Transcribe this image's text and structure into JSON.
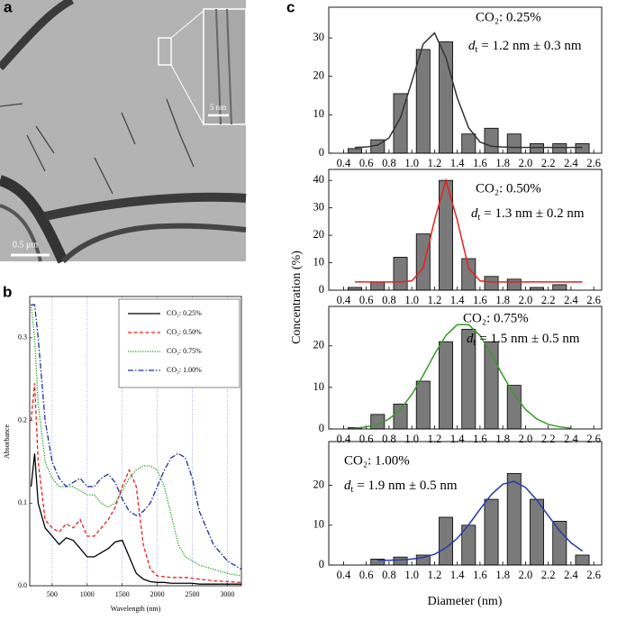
{
  "panel_labels": [
    "a",
    "b",
    "c"
  ],
  "image": {
    "scale_bar": "0.5 μm",
    "inset_scale_bar": "5 nm"
  },
  "shared_axes": {
    "ylabel": "Concentration (%)",
    "xlabel": "Diameter (nm)"
  },
  "chart_data": [
    {
      "type": "line",
      "xlabel": "Wavelength (nm)",
      "ylabel": "Absorbance",
      "x": [
        200,
        250,
        300,
        400,
        500,
        600,
        700,
        800,
        900,
        1000,
        1100,
        1200,
        1300,
        1400,
        1500,
        1600,
        1700,
        1800,
        1900,
        2000,
        2100,
        2200,
        2300,
        2400,
        2500,
        2600,
        2800,
        3000,
        3200
      ],
      "series": [
        {
          "name": "CO₂: 0.25%",
          "color": "#000000",
          "style": "solid",
          "values": [
            0.12,
            0.16,
            0.1,
            0.07,
            0.06,
            0.05,
            0.058,
            0.055,
            0.045,
            0.035,
            0.035,
            0.04,
            0.045,
            0.053,
            0.055,
            0.035,
            0.015,
            0.008,
            0.005,
            0.004,
            0.004,
            0.003,
            0.003,
            0.003,
            0.003,
            0.002,
            0.002,
            0.002,
            0.002
          ]
        },
        {
          "name": "CO₂: 0.50%",
          "color": "#e8201c",
          "style": "dashed",
          "values": [
            0.2,
            0.245,
            0.15,
            0.08,
            0.07,
            0.065,
            0.075,
            0.07,
            0.08,
            0.06,
            0.06,
            0.07,
            0.08,
            0.095,
            0.12,
            0.14,
            0.12,
            0.05,
            0.02,
            0.012,
            0.011,
            0.01,
            0.01,
            0.01,
            0.009,
            0.008,
            0.006,
            0.005,
            0.004
          ]
        },
        {
          "name": "CO₂: 0.75%",
          "color": "#1a9a1a",
          "style": "dotted",
          "values": [
            0.34,
            0.3,
            0.22,
            0.15,
            0.13,
            0.12,
            0.12,
            0.12,
            0.115,
            0.11,
            0.11,
            0.1,
            0.095,
            0.1,
            0.115,
            0.13,
            0.14,
            0.145,
            0.145,
            0.14,
            0.12,
            0.085,
            0.05,
            0.035,
            0.03,
            0.025,
            0.02,
            0.015,
            0.012
          ]
        },
        {
          "name": "CO₂: 1.00%",
          "color": "#1f2f9a",
          "style": "dashdot",
          "values": [
            0.34,
            0.34,
            0.3,
            0.2,
            0.15,
            0.13,
            0.12,
            0.125,
            0.13,
            0.12,
            0.12,
            0.13,
            0.135,
            0.125,
            0.105,
            0.09,
            0.085,
            0.09,
            0.1,
            0.12,
            0.14,
            0.155,
            0.16,
            0.155,
            0.13,
            0.09,
            0.05,
            0.03,
            0.02
          ]
        }
      ],
      "xlim": [
        180,
        3200
      ],
      "ylim": [
        0,
        0.35
      ],
      "xticks": [
        500,
        1000,
        1500,
        2000,
        2500,
        3000
      ],
      "yticks": [
        {
          "value": 0,
          "label": "0.0"
        },
        0.1,
        0.2,
        0.3
      ],
      "grid": true,
      "legend": "upper right"
    },
    {
      "type": "histogram",
      "annotation": "CO₂: 0.25%",
      "size": {
        "symbol": "d",
        "subscript": "t",
        "text": "= 1.2 nm ± 0.3 nm"
      },
      "bins": [
        0.4,
        0.6,
        0.8,
        1.0,
        1.2,
        1.4,
        1.6,
        1.8,
        2.0,
        2.2,
        2.4,
        2.6
      ],
      "counts": [
        1.2,
        3.5,
        15.5,
        27,
        29,
        5,
        6.5,
        5,
        2.5,
        2.5,
        2.5
      ],
      "color": "#7a7a7a",
      "fit": {
        "color": "#333333",
        "x": [
          0.5,
          0.6,
          0.7,
          0.8,
          0.9,
          1.0,
          1.1,
          1.2,
          1.3,
          1.4,
          1.5,
          1.6,
          1.7,
          1.8,
          1.9,
          2.0,
          2.1,
          2.2,
          2.3,
          2.4,
          2.5
        ],
        "values": [
          1.5,
          1.6,
          2.1,
          4.0,
          9.2,
          18.6,
          28.4,
          31.3,
          24.9,
          14.4,
          6.6,
          2.9,
          1.8,
          1.6,
          1.5,
          1.5,
          1.5,
          1.5,
          1.5,
          1.5,
          1.5
        ]
      },
      "xlim": [
        0.27,
        2.67
      ],
      "ylim": [
        0,
        38
      ],
      "xticks": [
        0.4,
        0.6,
        0.8,
        {
          "value": 1,
          "label": "1.0"
        },
        1.2,
        1.4,
        1.6,
        1.8,
        {
          "value": 2,
          "label": "2.0"
        },
        2.2,
        2.4,
        2.6
      ],
      "yticks": [
        0,
        10,
        20,
        30
      ]
    },
    {
      "type": "histogram",
      "annotation": "CO₂: 0.50%",
      "size": {
        "symbol": "d",
        "subscript": "t",
        "text": "= 1.3 nm ± 0.2 nm"
      },
      "bins": [
        0.4,
        0.6,
        0.8,
        1.0,
        1.2,
        1.4,
        1.6,
        1.8,
        2.0,
        2.2,
        2.4,
        2.6
      ],
      "counts": [
        1,
        3,
        12,
        20.5,
        40,
        11.5,
        5,
        4,
        1,
        2,
        0
      ],
      "color": "#7a7a7a",
      "fit": {
        "color": "#e8201c",
        "x": [
          0.5,
          0.6,
          0.7,
          0.8,
          0.9,
          1.0,
          1.1,
          1.2,
          1.3,
          1.4,
          1.5,
          1.6,
          1.7,
          1.8,
          1.9,
          2.0,
          2.1,
          2.2,
          2.3,
          2.4,
          2.5
        ],
        "values": [
          3,
          3,
          3,
          3,
          3,
          3.4,
          8,
          25.5,
          40,
          25.5,
          8,
          3.4,
          3,
          3,
          3,
          3,
          3,
          3,
          3,
          3,
          3
        ]
      },
      "xlim": [
        0.27,
        2.67
      ],
      "ylim": [
        0,
        44
      ],
      "xticks": [
        0.4,
        0.6,
        0.8,
        {
          "value": 1,
          "label": "1.0"
        },
        1.2,
        1.4,
        1.6,
        1.8,
        {
          "value": 2,
          "label": "2.0"
        },
        2.2,
        2.4,
        2.6
      ],
      "yticks": [
        0,
        10,
        20,
        30,
        40
      ]
    },
    {
      "type": "histogram",
      "annotation": "CO₂: 0.75%",
      "size": {
        "symbol": "d",
        "subscript": "t",
        "text": "= 1.5 nm ± 0.5 nm"
      },
      "bins": [
        0.4,
        0.6,
        0.8,
        1.0,
        1.2,
        1.4,
        1.6,
        1.8,
        2.0,
        2.2,
        2.4,
        2.6
      ],
      "counts": [
        0.3,
        3.5,
        6,
        11.5,
        21,
        24,
        21,
        10.5,
        0,
        0,
        0
      ],
      "color": "#7a7a7a",
      "fit": {
        "color": "#3a9a2a",
        "x": [
          0.5,
          0.6,
          0.7,
          0.8,
          0.9,
          1.0,
          1.1,
          1.2,
          1.3,
          1.4,
          1.5,
          1.6,
          1.7,
          1.8,
          1.9,
          2.0,
          2.1,
          2.2,
          2.3,
          2.4
        ],
        "values": [
          0.2,
          0.5,
          1.1,
          2.4,
          4.7,
          8.3,
          12.9,
          18.0,
          22.5,
          25.1,
          25.1,
          22.5,
          18.0,
          12.9,
          8.3,
          4.7,
          2.4,
          1.1,
          0.5,
          0.2
        ]
      },
      "xlim": [
        0.27,
        2.67
      ],
      "ylim": [
        0,
        29.5
      ],
      "xticks": [
        0.4,
        0.6,
        0.8,
        {
          "value": 1,
          "label": "1.0"
        },
        1.2,
        1.4,
        1.6,
        1.8,
        {
          "value": 2,
          "label": "2.0"
        },
        2.2,
        2.4,
        2.6
      ],
      "yticks": [
        0,
        10,
        20
      ]
    },
    {
      "type": "histogram",
      "annotation": "CO₂: 1.00%",
      "size": {
        "symbol": "d",
        "subscript": "t",
        "text": "= 1.9 nm ± 0.5 nm"
      },
      "bins": [
        0.4,
        0.6,
        0.8,
        1.0,
        1.2,
        1.4,
        1.6,
        1.8,
        2.0,
        2.2,
        2.4,
        2.6
      ],
      "counts": [
        0,
        1.5,
        2,
        2.5,
        12,
        10,
        16.5,
        23,
        16.5,
        11,
        2.5
      ],
      "color": "#7a7a7a",
      "fit": {
        "color": "#2a3aa8",
        "x": [
          0.7,
          0.8,
          0.9,
          1.0,
          1.1,
          1.2,
          1.3,
          1.4,
          1.5,
          1.6,
          1.7,
          1.8,
          1.9,
          2.0,
          2.1,
          2.2,
          2.3,
          2.4,
          2.5
        ],
        "values": [
          1.2,
          1.2,
          1.3,
          1.5,
          1.9,
          2.7,
          4.3,
          6.7,
          10.1,
          14.0,
          17.7,
          20.3,
          21.0,
          19.5,
          16.3,
          12.4,
          8.6,
          5.6,
          3.5
        ]
      },
      "xlim": [
        0.27,
        2.67
      ],
      "ylim": [
        0,
        31
      ],
      "xticks": [
        0.4,
        0.6,
        0.8,
        {
          "value": 1,
          "label": "1.0"
        },
        1.2,
        1.4,
        1.6,
        1.8,
        {
          "value": 2,
          "label": "2.0"
        },
        2.2,
        2.4,
        2.6
      ],
      "yticks": [
        0,
        10,
        20
      ]
    }
  ]
}
